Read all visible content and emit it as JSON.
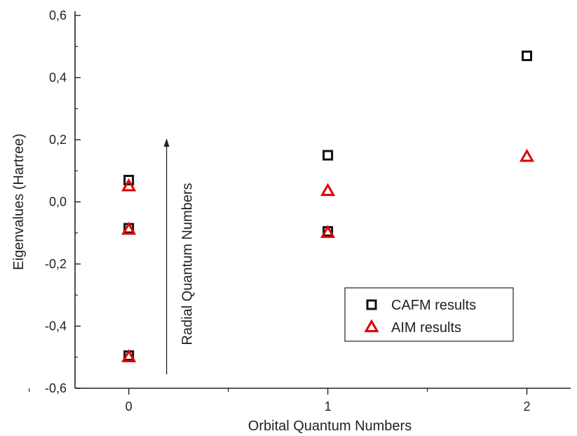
{
  "chart_data": {
    "type": "scatter",
    "xlabel": "Orbital Quantum Numbers",
    "ylabel": "Eigenvalues (Hartree)",
    "xlim": [
      -0.27,
      2.22
    ],
    "ylim": [
      -0.6,
      0.6
    ],
    "x_ticks": [
      0,
      1,
      2
    ],
    "x_tick_labels": [
      "0",
      "1",
      "2"
    ],
    "y_ticks": [
      -0.6,
      -0.4,
      -0.2,
      0.0,
      0.2,
      0.4,
      0.6
    ],
    "y_tick_labels": [
      "-0,6",
      "-0,4",
      "-0,2",
      "0,0",
      "0,2",
      "0,4",
      "0,6"
    ],
    "grid": false,
    "legend_position": "bottom-right",
    "series": [
      {
        "name": "CAFM results",
        "marker": "square",
        "color": "#111111",
        "points": [
          {
            "x": 0,
            "y": 0.07
          },
          {
            "x": 0,
            "y": -0.085
          },
          {
            "x": 0,
            "y": -0.495
          },
          {
            "x": 1,
            "y": 0.15
          },
          {
            "x": 1,
            "y": -0.095
          },
          {
            "x": 2,
            "y": 0.47
          }
        ]
      },
      {
        "name": "AIM results",
        "marker": "triangle",
        "color": "#e00000",
        "points": [
          {
            "x": 0,
            "y": 0.05
          },
          {
            "x": 0,
            "y": -0.09
          },
          {
            "x": 0,
            "y": -0.5
          },
          {
            "x": 1,
            "y": 0.035
          },
          {
            "x": 1,
            "y": -0.1
          },
          {
            "x": 2,
            "y": 0.145
          }
        ]
      }
    ],
    "annotations": [
      {
        "text": "Radial Quantum Numbers",
        "arrow": "up",
        "x": 0.19,
        "y_from": -0.555,
        "y_to": 0.2
      }
    ]
  }
}
